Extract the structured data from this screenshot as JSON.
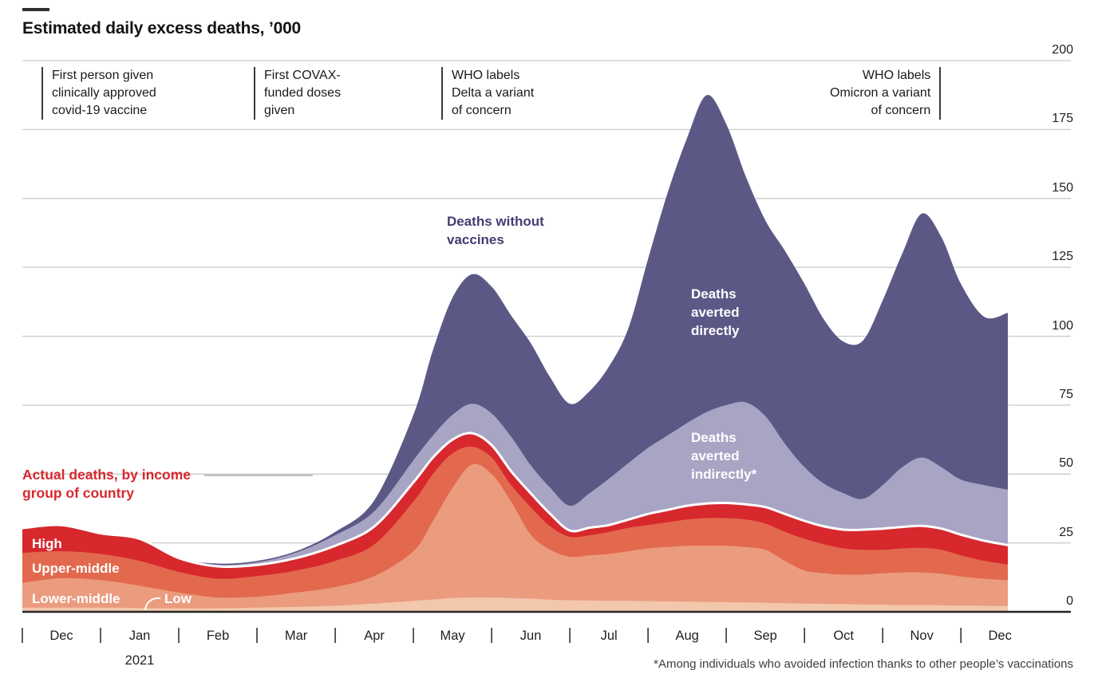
{
  "chart_data": {
    "type": "area",
    "stacked": true,
    "title": "Estimated daily excess deaths, ’000",
    "footnote": "*Among individuals who avoided infection thanks to other people’s vaccinations",
    "x_unit": "months since 1 Dec 2020",
    "x_domain": [
      0,
      12.6
    ],
    "y_domain": [
      0,
      200
    ],
    "y_ticks": [
      0,
      25,
      50,
      75,
      100,
      125,
      150,
      175,
      200
    ],
    "x_tick_months": [
      "Dec",
      "Jan",
      "Feb",
      "Mar",
      "Apr",
      "May",
      "Jun",
      "Jul",
      "Aug",
      "Sep",
      "Oct",
      "Nov",
      "Dec"
    ],
    "year_label": "2021",
    "grid": true,
    "legend_position": "inline-labels",
    "annotations": [
      {
        "text": "First person given\nclinically approved\ncovid-19 vaccine",
        "align": "left"
      },
      {
        "text": "First COVAX-\nfunded doses\ngiven",
        "align": "left"
      },
      {
        "text": "WHO labels\nDelta a variant\nof concern",
        "align": "left"
      },
      {
        "text": "WHO labels\nOmicron a variant\nof concern",
        "align": "right"
      }
    ],
    "area_labels": {
      "without_vaccines": "Deaths without\nvaccines",
      "averted_directly": "Deaths\naverted\ndirectly",
      "averted_indirectly": "Deaths\naverted\nindirectly*",
      "actual_deaths": "Actual deaths, by income\ngroup of country",
      "high": "High",
      "upper_middle": "Upper-middle",
      "lower_middle": "Lower-middle",
      "low": "Low"
    },
    "values_are": "cumulative stack tops, thousands of daily excess deaths",
    "x": [
      0,
      0.5,
      1,
      1.5,
      2,
      2.5,
      3,
      3.5,
      4,
      4.5,
      5,
      5.25,
      5.5,
      5.75,
      6,
      6.25,
      6.5,
      6.75,
      7,
      7.25,
      7.5,
      7.75,
      8,
      8.25,
      8.5,
      8.75,
      9,
      9.25,
      9.5,
      9.75,
      10,
      10.25,
      10.5,
      10.75,
      11,
      11.25,
      11.5,
      11.75,
      12,
      12.3,
      12.6
    ],
    "series": [
      {
        "name": "Low",
        "color": "#f2c7ac",
        "cumulative_top": [
          1.5,
          1.5,
          1.5,
          1.4,
          1.3,
          1.3,
          1.5,
          1.8,
          2.2,
          3,
          4,
          4.5,
          5,
          5.2,
          5.2,
          5,
          4.8,
          4.4,
          4.2,
          4.1,
          4,
          4,
          3.9,
          3.8,
          3.7,
          3.6,
          3.5,
          3.4,
          3.3,
          3.1,
          3,
          2.9,
          2.8,
          2.7,
          2.6,
          2.5,
          2.5,
          2.4,
          2.3,
          2.2,
          2.1
        ]
      },
      {
        "name": "Lower-middle",
        "color": "#eb9b7e",
        "cumulative_top": [
          10.5,
          12.2,
          11.5,
          9.5,
          7,
          5.2,
          5.5,
          7,
          9,
          13,
          22,
          33,
          45,
          53.5,
          50,
          40,
          28,
          22.5,
          20,
          20.5,
          21,
          22,
          23,
          23.5,
          24,
          24,
          24,
          23.5,
          22.5,
          18.5,
          15,
          14,
          13.5,
          13.5,
          14,
          14.3,
          14.3,
          13.8,
          12.8,
          12,
          11.5
        ]
      },
      {
        "name": "Upper-middle",
        "color": "#e2694d",
        "cumulative_top": [
          21.4,
          22,
          21,
          18.5,
          14.5,
          12,
          13,
          15,
          18.5,
          24.5,
          40,
          50,
          57.5,
          59.9,
          56,
          46,
          38,
          31,
          27.2,
          27.8,
          29,
          30.5,
          31.5,
          32.5,
          33.5,
          34,
          34,
          33.5,
          32,
          29,
          26.5,
          24.5,
          23,
          22.5,
          22.5,
          23,
          23.2,
          22.5,
          20.5,
          18.5,
          17.2
        ]
      },
      {
        "name": "High",
        "color": "#d7282e",
        "top_stroke": "#ffffff",
        "cumulative_top": [
          30.4,
          31.5,
          28.5,
          26.5,
          19.5,
          16.5,
          17,
          19.5,
          24,
          31,
          47,
          56,
          62.5,
          64.8,
          60.5,
          51,
          43,
          35.5,
          29.5,
          30.5,
          31.5,
          33.5,
          35.5,
          37,
          38.5,
          39.3,
          39.5,
          39,
          38,
          35.5,
          33,
          31,
          29.8,
          29.8,
          30.2,
          30.8,
          31.2,
          30.2,
          28,
          25.8,
          24.2
        ]
      },
      {
        "name": "Deaths averted indirectly*",
        "color": "#a8a4c4",
        "cumulative_top": [
          30.4,
          31.5,
          28.5,
          26.5,
          19.5,
          17,
          18,
          21.5,
          27.8,
          36.5,
          55,
          64,
          71.5,
          75.5,
          72,
          63.5,
          53.2,
          45,
          38.5,
          43,
          48.3,
          54,
          59.5,
          64,
          68.5,
          72.5,
          75,
          76,
          71,
          61,
          52.5,
          46.5,
          43,
          41,
          46,
          52.5,
          56,
          52.5,
          48,
          46,
          44.3
        ]
      },
      {
        "name": "Deaths averted directly",
        "color": "#5c5886",
        "note": "top of this band equals estimated deaths without vaccines",
        "cumulative_top": [
          30.4,
          31.5,
          28.5,
          26.5,
          19.5,
          17.5,
          18.5,
          22,
          29,
          40.5,
          71.5,
          95,
          114,
          122.5,
          118,
          107.5,
          97.5,
          85,
          75.5,
          80,
          89,
          103,
          128,
          152,
          172,
          187.5,
          177,
          158,
          142,
          131,
          119,
          106,
          98,
          98.5,
          113,
          130,
          144.5,
          136,
          119,
          107,
          108.5
        ]
      }
    ],
    "colors": {
      "grid": "#c9c9c9",
      "axis": "#262626",
      "annotation_bar": "#3a3a3a",
      "title_text": "#141414",
      "red_label_text": "#d7282e",
      "purple_label_text": "#423e72"
    }
  }
}
